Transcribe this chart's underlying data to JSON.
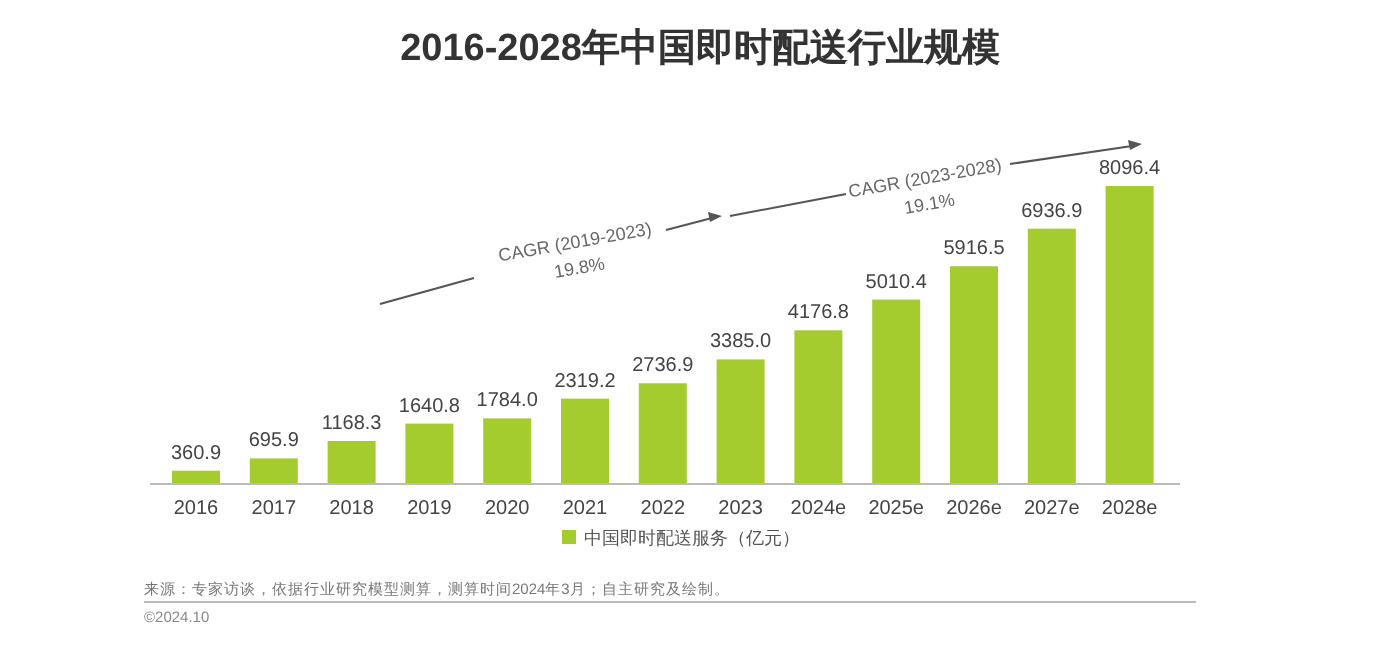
{
  "chart_data": {
    "type": "bar",
    "title": "2016-2028年中国即时配送行业规模",
    "categories": [
      "2016",
      "2017",
      "2018",
      "2019",
      "2020",
      "2021",
      "2022",
      "2023",
      "2024e",
      "2025e",
      "2026e",
      "2027e",
      "2028e"
    ],
    "series": [
      {
        "name": "中国即时配送服务（亿元）",
        "color": "#a5cc2f",
        "values": [
          360.9,
          695.9,
          1168.3,
          1640.8,
          1784.0,
          2319.2,
          2736.9,
          3385.0,
          4176.8,
          5010.4,
          5916.5,
          6936.9,
          8096.4
        ],
        "value_labels": [
          "360.9",
          "695.9",
          "1168.3",
          "1640.8",
          "1784.0",
          "2319.2",
          "2736.9",
          "3385.0",
          "4176.8",
          "5010.4",
          "5916.5",
          "6936.9",
          "8096.4"
        ]
      }
    ],
    "legend": "bottom",
    "annotations": [
      "CAGR (2019-2023)",
      "19.8%",
      "CAGR (2023-2028)",
      "19.1%",
      "来源：专家访谈，依据行业研究模型测算，测算时间2024年3月；自主研究及绘制。",
      "©2024.10"
    ]
  }
}
